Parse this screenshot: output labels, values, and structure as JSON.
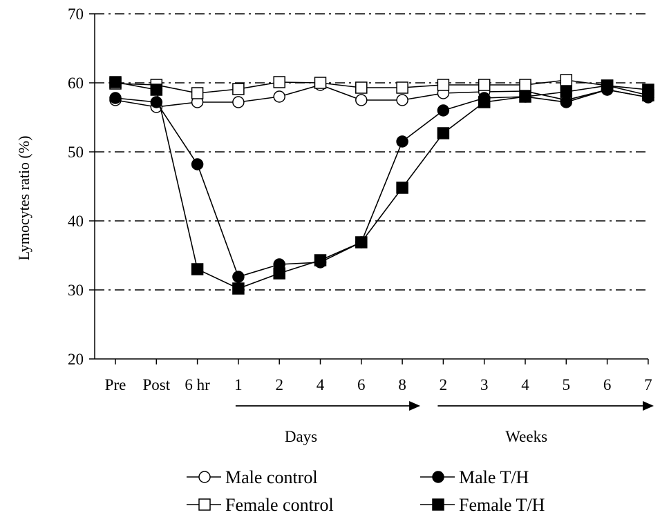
{
  "chart_data": {
    "type": "line",
    "ylabel": "Lymocytes ratio  (%)",
    "ylim": [
      20,
      70
    ],
    "yticks": [
      20,
      30,
      40,
      50,
      60,
      70
    ],
    "grid": true,
    "categories": [
      "Pre",
      "Post",
      "6 hr",
      "1",
      "2",
      "4",
      "6",
      "8",
      "2",
      "3",
      "4",
      "5",
      "6",
      "7"
    ],
    "period_labels": [
      "Days",
      "Weeks"
    ],
    "series": [
      {
        "name": "Male control",
        "marker": "circle-open",
        "values": [
          57.5,
          56.5,
          57.2,
          57.2,
          58.0,
          59.7,
          57.5,
          57.5,
          58.5,
          58.7,
          58.8,
          57.5,
          59.0,
          57.9
        ]
      },
      {
        "name": "Female control",
        "marker": "square-open",
        "values": [
          59.9,
          59.7,
          58.5,
          59.1,
          60.1,
          60.0,
          59.3,
          59.3,
          59.7,
          59.7,
          59.7,
          60.4,
          59.6,
          58.2
        ]
      },
      {
        "name": "Male T/H",
        "marker": "circle-filled",
        "values": [
          57.8,
          57.2,
          48.2,
          31.9,
          33.7,
          34.0,
          36.9,
          51.5,
          56.0,
          57.8,
          58.0,
          57.2,
          59.0,
          57.9
        ]
      },
      {
        "name": "Female T/H",
        "marker": "square-filled",
        "values": [
          60.1,
          59.0,
          33.0,
          30.2,
          32.4,
          34.3,
          36.9,
          44.8,
          52.7,
          57.2,
          58.0,
          58.7,
          59.6,
          59.0
        ]
      }
    ]
  }
}
